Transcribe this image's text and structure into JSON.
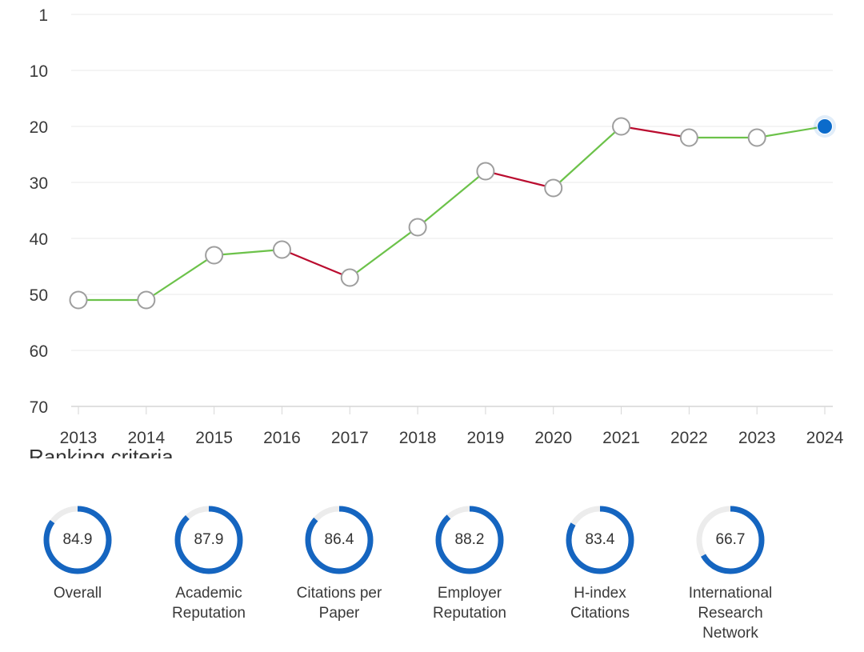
{
  "chart_data": {
    "type": "line",
    "title": "",
    "xlabel": "",
    "ylabel": "",
    "x": [
      "2013",
      "2014",
      "2015",
      "2016",
      "2017",
      "2018",
      "2019",
      "2020",
      "2021",
      "2022",
      "2023",
      "2024"
    ],
    "series": [
      {
        "values": [
          51,
          51,
          43,
          42,
          47,
          38,
          28,
          31,
          20,
          22,
          22,
          20
        ]
      }
    ],
    "y_axis": {
      "inverted": true,
      "ticks": [
        1,
        10,
        20,
        30,
        40,
        50,
        60,
        70
      ],
      "ylim": [
        1,
        70
      ]
    },
    "grid": true,
    "colors": {
      "improved": "#6cc24a",
      "declined": "#ba0c2f",
      "marker_fill": "#ffffff",
      "marker_stroke": "#9e9e9e",
      "current": "#0b6bcb"
    }
  },
  "ranking_section": {
    "heading": "Ranking criteria",
    "gauge_color": "#1565c0",
    "gauge_track_color": "#ececec",
    "criteria": [
      {
        "label": "Overall",
        "score": "84.9"
      },
      {
        "label": "Academic\nReputation",
        "score": "87.9"
      },
      {
        "label": "Citations per\nPaper",
        "score": "86.4"
      },
      {
        "label": "Employer\nReputation",
        "score": "88.2"
      },
      {
        "label": "H-index\nCitations",
        "score": "83.4"
      },
      {
        "label": "International\nResearch\nNetwork",
        "score": "66.7"
      }
    ]
  }
}
